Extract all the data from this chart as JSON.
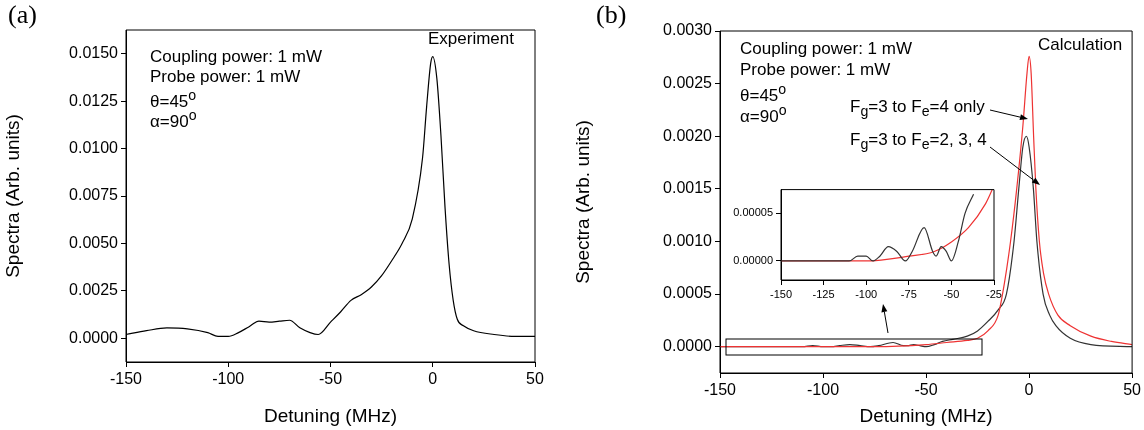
{
  "chart_data": [
    {
      "type": "line",
      "title": "(a)",
      "xlabel": "Detuning (MHz)",
      "ylabel": "Spectra (Arb. units)",
      "xlim": [
        -150,
        50
      ],
      "xticks": [
        -150,
        -100,
        -50,
        0,
        50
      ],
      "ylim": [
        -0.00125,
        0.01625
      ],
      "yticks": [
        {
          "value": 0,
          "label": "0.0000"
        },
        {
          "value": 0.0025,
          "label": "0.0025"
        },
        {
          "value": 0.005,
          "label": "0.0050"
        },
        {
          "value": 0.0075,
          "label": "0.0075"
        },
        {
          "value": 0.01,
          "label": "0.0100"
        },
        {
          "value": 0.0125,
          "label": "0.0125"
        },
        {
          "value": 0.015,
          "label": "0.0150"
        }
      ],
      "marker": "none",
      "legend": false,
      "annotations": [
        "Coupling power: 1 mW",
        "Probe power: 1 mW",
        "θ=45$^{o}$",
        "α=90$^{o}$",
        "Experiment"
      ],
      "series": [
        {
          "color": "#000000",
          "x": [
            -150,
            -140,
            -130,
            -120,
            -110,
            -105,
            -100,
            -95,
            -90,
            -85,
            -80,
            -75,
            -70,
            -65,
            -60,
            -56,
            -50,
            -45,
            -40,
            -35,
            -30,
            -25,
            -20,
            -15,
            -10,
            -5,
            -3,
            -1,
            0,
            2,
            4,
            6,
            8,
            10,
            12,
            15,
            20,
            30,
            40,
            50
          ],
          "values": [
            0.0002,
            0.0004,
            0.00055,
            0.0005,
            0.0003,
            0.0001,
            0.0001,
            0.0003,
            0.0006,
            0.0009,
            0.00085,
            0.0009,
            0.00095,
            0.00055,
            0.0003,
            0.0002,
            0.00085,
            0.0014,
            0.002,
            0.0023,
            0.0027,
            0.0033,
            0.0041,
            0.005,
            0.0063,
            0.0095,
            0.0122,
            0.0145,
            0.01485,
            0.0137,
            0.0107,
            0.0069,
            0.0039,
            0.002,
            0.001,
            0.00066,
            0.0004,
            0.0002,
            0.0001,
            0.0001
          ]
        }
      ]
    },
    {
      "type": "line",
      "title": "(b)",
      "xlabel": "Detuning (MHz)",
      "ylabel": "Spectra (Arb. units)",
      "xlim": [
        -150,
        50
      ],
      "xticks": [
        -150,
        -100,
        -50,
        0,
        50
      ],
      "ylim": [
        -0.00025,
        0.003
      ],
      "yticks": [
        {
          "value": 0,
          "label": "0.0000"
        },
        {
          "value": 0.0005,
          "label": "0.0005"
        },
        {
          "value": 0.001,
          "label": "0.0010"
        },
        {
          "value": 0.0015,
          "label": "0.0015"
        },
        {
          "value": 0.002,
          "label": "0.0020"
        },
        {
          "value": 0.0025,
          "label": "0.0025"
        },
        {
          "value": 0.003,
          "label": "0.0030"
        }
      ],
      "marker": "none",
      "legend": false,
      "annotations": [
        "Coupling power: 1 mW",
        "Probe power: 1 mW",
        "θ=45$^{o}$",
        "α=90$^{o}$",
        "Calculation"
      ],
      "series": [
        {
          "name": "F$_{g}$=3 to F$_{e}$=4 only",
          "color": "#ee3333",
          "x": [
            -150,
            -100,
            -75,
            -50,
            -40,
            -30,
            -25,
            -20,
            -15,
            -12,
            -9,
            -6,
            -3,
            -1,
            0,
            1,
            2.2,
            3.3,
            5,
            7,
            9.5,
            14,
            20,
            30,
            40,
            50
          ],
          "values": [
            0,
            0,
            0,
            2e-05,
            4e-05,
            6e-05,
            8e-05,
            0.00015,
            0.0003,
            0.0006,
            0.001,
            0.0015,
            0.0021,
            0.0026,
            0.00276,
            0.0026,
            0.002,
            0.0015,
            0.001,
            0.0007,
            0.0005,
            0.0003,
            0.0002,
            0.0001,
            5e-05,
            2e-05
          ]
        },
        {
          "name": "F$_{g}$=3 to F$_{e}$=2, 3, 4",
          "color": "#333333",
          "x": [
            -150,
            -120,
            -110,
            -105,
            -100,
            -96,
            -92,
            -87,
            -82,
            -77,
            -73,
            -66,
            -61,
            -59,
            -56,
            -53,
            -50,
            -46,
            -42,
            -37,
            -30,
            -25,
            -20,
            -15,
            -11,
            -7.3,
            -5,
            -3,
            -1.3,
            0,
            2.1,
            3.8,
            6.8,
            10,
            13,
            20,
            30,
            50
          ],
          "values": [
            0,
            0,
            0,
            1e-05,
            0,
            0,
            1e-05,
            2e-05,
            1e-05,
            0,
            1e-05,
            4e-05,
            1e-05,
            1e-05,
            2e-05,
            1e-05,
            0,
            2e-05,
            5e-05,
            7e-05,
            0.0001,
            0.00015,
            0.00024,
            0.00035,
            0.0005,
            0.001,
            0.0015,
            0.0019,
            0.002,
            0.0019,
            0.0015,
            0.001,
            0.0005,
            0.0003,
            0.0002,
            8e-05,
            2e-05,
            0
          ]
        }
      ]
    },
    {
      "type": "line",
      "xlim": [
        -150,
        -25
      ],
      "xticks": [
        -150,
        -125,
        -100,
        -75,
        -50,
        -25
      ],
      "ylim": [
        -2e-05,
        7.5e-05
      ],
      "yticks": [
        {
          "value": 0,
          "label": "0.00000"
        },
        {
          "value": 5e-05,
          "label": "0.00005"
        }
      ],
      "marker": "none",
      "legend": false,
      "series": [
        {
          "color": "#333333",
          "x": [
            -150,
            -120,
            -110,
            -105,
            -100,
            -96,
            -92,
            -87,
            -82,
            -77,
            -73,
            -66,
            -61,
            -59,
            -56,
            -53,
            -50,
            -46,
            -42,
            -37
          ],
          "values": [
            0,
            0,
            0,
            5e-06,
            5e-06,
            0,
            5e-06,
            1.5e-05,
            1e-05,
            0,
            1e-05,
            3.5e-05,
            1e-05,
            5e-06,
            1.5e-05,
            1e-05,
            0,
            2e-05,
            5e-05,
            7e-05
          ]
        },
        {
          "color": "#ee3333",
          "x": [
            -150,
            -125,
            -100,
            -75,
            -60,
            -50,
            -40,
            -30,
            -26
          ],
          "values": [
            0,
            0,
            0,
            5e-06,
            1e-05,
            2e-05,
            3.5e-05,
            6e-05,
            7.5e-05
          ]
        }
      ]
    }
  ]
}
